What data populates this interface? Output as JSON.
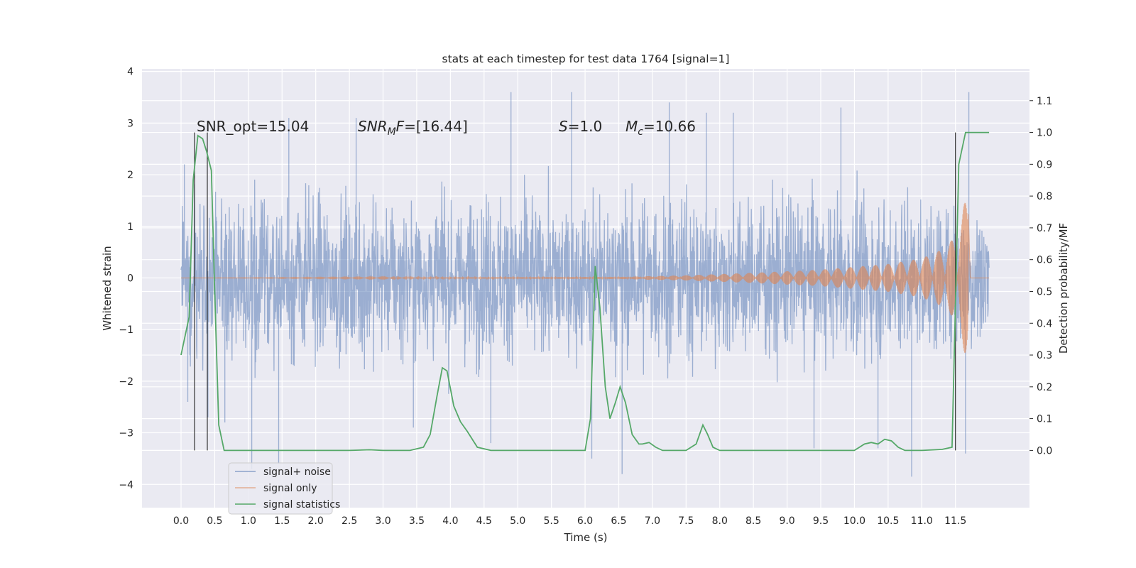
{
  "chart_data": {
    "type": "line",
    "title": "stats at each timestep for test data 1764 [signal=1]",
    "xlabel": "Time (s)",
    "ylabel": "Whitened strain",
    "y2label": "Detection probability/MF",
    "xlim": [
      -0.58,
      12.6
    ],
    "ylim": [
      -4.45,
      4.05
    ],
    "y2lim": [
      -0.18,
      1.2
    ],
    "xticks": [
      0.0,
      0.5,
      1.0,
      1.5,
      2.0,
      2.5,
      3.0,
      3.5,
      4.0,
      4.5,
      5.0,
      5.5,
      6.0,
      6.5,
      7.0,
      7.5,
      8.0,
      8.5,
      9.0,
      9.5,
      10.0,
      10.5,
      11.0,
      11.5
    ],
    "xtick_labels": [
      "0.0",
      "0.5",
      "1.0",
      "1.5",
      "2.0",
      "2.5",
      "3.0",
      "3.5",
      "4.0",
      "4.5",
      "5.0",
      "5.5",
      "6.0",
      "6.5",
      "7.0",
      "7.5",
      "8.0",
      "8.5",
      "9.0",
      "9.5",
      "10.0",
      "10.5",
      "11.0",
      "11.5"
    ],
    "yticks": [
      4,
      3,
      2,
      1,
      0,
      -1,
      -2,
      -3,
      -4
    ],
    "ytick_labels": [
      "4",
      "3",
      "2",
      "1",
      "0",
      "−1",
      "−2",
      "−3",
      "−4"
    ],
    "y2ticks": [
      1.1,
      1.0,
      0.9,
      0.8,
      0.7,
      0.6,
      0.5,
      0.4,
      0.3,
      0.2,
      0.1,
      0.0
    ],
    "y2tick_labels": [
      "1.1",
      "1.0",
      "0.9",
      "0.8",
      "0.7",
      "0.6",
      "0.5",
      "0.4",
      "0.3",
      "0.2",
      "0.1",
      "0.0"
    ],
    "grid": true,
    "legend_position": "lower-left",
    "annotations": [
      {
        "id": "snr-opt",
        "text": "SNR_opt=15.04",
        "x": 0.2,
        "y": 2.8
      },
      {
        "id": "snr-mf",
        "text": "SNR_MF=[16.44]",
        "x": 2.6,
        "y": 2.8
      },
      {
        "id": "s",
        "text": "S=1.0",
        "x": 5.6,
        "y": 2.8
      },
      {
        "id": "mc",
        "text": "M_c=10.66",
        "x": 6.6,
        "y": 2.8
      }
    ],
    "vertical_markers": [
      0.2,
      0.39,
      11.5
    ],
    "series": [
      {
        "name": "signal+ noise",
        "color": "#4c72b0",
        "axis": "left",
        "x_range": [
          0.0,
          12.0
        ],
        "amplitude_typical": 1.6,
        "notable_spikes": [
          {
            "x": 0.05,
            "y": 2.2
          },
          {
            "x": 0.1,
            "y": -2.4
          },
          {
            "x": 0.4,
            "y": -2.7
          },
          {
            "x": 0.65,
            "y": -2.8
          },
          {
            "x": 1.05,
            "y": -3.7
          },
          {
            "x": 1.45,
            "y": -3.6
          },
          {
            "x": 1.6,
            "y": 3.1
          },
          {
            "x": 2.6,
            "y": 3.1
          },
          {
            "x": 3.45,
            "y": -2.9
          },
          {
            "x": 4.6,
            "y": -3.2
          },
          {
            "x": 4.9,
            "y": 3.6
          },
          {
            "x": 5.8,
            "y": 3.6
          },
          {
            "x": 6.1,
            "y": -3.5
          },
          {
            "x": 6.55,
            "y": -3.8
          },
          {
            "x": 7.25,
            "y": 3.4
          },
          {
            "x": 7.8,
            "y": 3.2
          },
          {
            "x": 8.2,
            "y": 3.2
          },
          {
            "x": 9.4,
            "y": -3.3
          },
          {
            "x": 9.8,
            "y": 3.3
          },
          {
            "x": 10.35,
            "y": -3.3
          },
          {
            "x": 10.85,
            "y": -3.85
          },
          {
            "x": 11.7,
            "y": 3.6
          },
          {
            "x": 11.65,
            "y": -3.4
          }
        ]
      },
      {
        "name": "signal only",
        "color": "#dd8452",
        "axis": "left",
        "envelope": {
          "x": [
            0.0,
            6.5,
            7.5,
            8.5,
            9.5,
            10.5,
            11.0,
            11.3,
            11.5,
            11.6,
            11.68,
            11.72,
            12.0
          ],
          "y": [
            0.0,
            0.02,
            0.05,
            0.1,
            0.16,
            0.27,
            0.38,
            0.55,
            0.8,
            1.2,
            1.8,
            0.0,
            0.0
          ]
        }
      },
      {
        "name": "signal statistics",
        "color": "#55a868",
        "axis": "right",
        "x": [
          0.0,
          0.12,
          0.18,
          0.25,
          0.32,
          0.38,
          0.45,
          0.5,
          0.56,
          0.64,
          1.0,
          2.0,
          2.5,
          2.8,
          3.0,
          3.4,
          3.6,
          3.7,
          3.8,
          3.88,
          3.95,
          4.05,
          4.15,
          4.25,
          4.4,
          4.6,
          5.0,
          6.0,
          6.08,
          6.15,
          6.22,
          6.3,
          6.37,
          6.45,
          6.52,
          6.6,
          6.7,
          6.8,
          6.85,
          6.95,
          7.05,
          7.15,
          7.25,
          7.5,
          7.65,
          7.75,
          7.82,
          7.9,
          8.0,
          10.0,
          10.15,
          10.25,
          10.35,
          10.45,
          10.55,
          10.65,
          10.75,
          11.0,
          11.3,
          11.45,
          11.55,
          11.65,
          11.75,
          12.0
        ],
        "y": [
          0.3,
          0.42,
          0.85,
          0.99,
          0.98,
          0.94,
          0.88,
          0.5,
          0.08,
          0.0,
          0.0,
          0.0,
          0.0,
          0.002,
          0.0,
          0.0,
          0.01,
          0.05,
          0.17,
          0.26,
          0.25,
          0.14,
          0.09,
          0.06,
          0.01,
          0.0,
          0.0,
          0.0,
          0.1,
          0.58,
          0.45,
          0.2,
          0.1,
          0.15,
          0.2,
          0.15,
          0.05,
          0.02,
          0.02,
          0.025,
          0.01,
          0.0,
          0.0,
          0.0,
          0.02,
          0.08,
          0.05,
          0.01,
          0.0,
          0.0,
          0.02,
          0.025,
          0.02,
          0.035,
          0.03,
          0.01,
          0.0,
          0.0,
          0.003,
          0.01,
          0.9,
          1.0,
          1.0,
          1.0
        ]
      }
    ]
  }
}
